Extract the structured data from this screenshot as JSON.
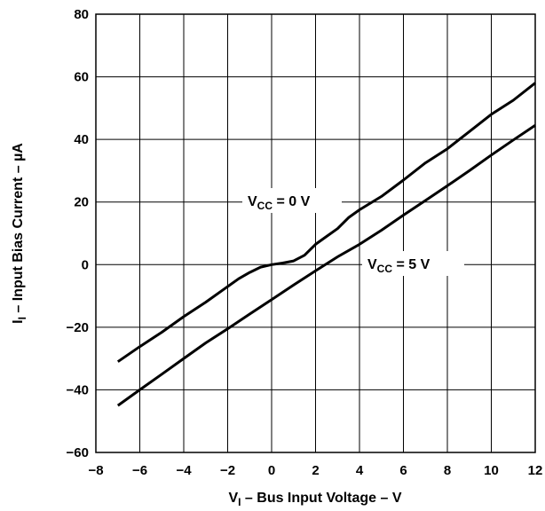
{
  "chart_data": {
    "type": "line",
    "xlabel": {
      "main": "V",
      "sub": "I",
      "rest": " – Bus Input Voltage – V"
    },
    "ylabel": {
      "main": "I",
      "sub": "I",
      "rest": " – Input Bias Current – µA"
    },
    "xlim": [
      -8,
      12
    ],
    "ylim": [
      -60,
      80
    ],
    "xticks": [
      -8,
      -6,
      -4,
      -2,
      0,
      2,
      4,
      6,
      8,
      10,
      12
    ],
    "yticks": [
      -60,
      -40,
      -20,
      0,
      20,
      40,
      60,
      80
    ],
    "x_tick_labels": [
      "−8",
      "−6",
      "−4",
      "−2",
      "0",
      "2",
      "4",
      "6",
      "8",
      "10",
      "12"
    ],
    "y_tick_labels": [
      "−60",
      "−40",
      "−20",
      "0",
      "20",
      "40",
      "60",
      "80"
    ],
    "grid": true,
    "series": [
      {
        "name": "VCC = 0 V",
        "label": {
          "main": "V",
          "sub": "CC",
          "rest": " = 0 V"
        },
        "points": [
          [
            -7,
            -31
          ],
          [
            -6,
            -26.2
          ],
          [
            -5,
            -21.6
          ],
          [
            -4,
            -16.6
          ],
          [
            -3,
            -12
          ],
          [
            -2,
            -7
          ],
          [
            -1.5,
            -4.5
          ],
          [
            -1,
            -2.5
          ],
          [
            -0.5,
            -0.8
          ],
          [
            0,
            0
          ],
          [
            0.5,
            0.5
          ],
          [
            1,
            1.2
          ],
          [
            1.5,
            3
          ],
          [
            2,
            6.5
          ],
          [
            2.5,
            9
          ],
          [
            3,
            11.5
          ],
          [
            3.5,
            15
          ],
          [
            4,
            17.5
          ],
          [
            5,
            21.8
          ],
          [
            6,
            27
          ],
          [
            7,
            32.5
          ],
          [
            8,
            37
          ],
          [
            9,
            42.5
          ],
          [
            10,
            48
          ],
          [
            11,
            52.5
          ],
          [
            12,
            58
          ]
        ]
      },
      {
        "name": "VCC = 5 V",
        "label": {
          "main": "V",
          "sub": "CC",
          "rest": " = 5 V"
        },
        "points": [
          [
            -7,
            -45
          ],
          [
            -6,
            -40
          ],
          [
            -5,
            -35
          ],
          [
            -4,
            -30
          ],
          [
            -3,
            -25
          ],
          [
            -2,
            -20.5
          ],
          [
            -1,
            -15.8
          ],
          [
            0,
            -11.2
          ],
          [
            1,
            -6.5
          ],
          [
            2,
            -2
          ],
          [
            3,
            2.5
          ],
          [
            4,
            6.5
          ],
          [
            5,
            11
          ],
          [
            6,
            15.8
          ],
          [
            7,
            20.5
          ],
          [
            8,
            25.2
          ],
          [
            9,
            30
          ],
          [
            10,
            35
          ],
          [
            11,
            39.8
          ],
          [
            12,
            44.5
          ]
        ]
      }
    ]
  }
}
